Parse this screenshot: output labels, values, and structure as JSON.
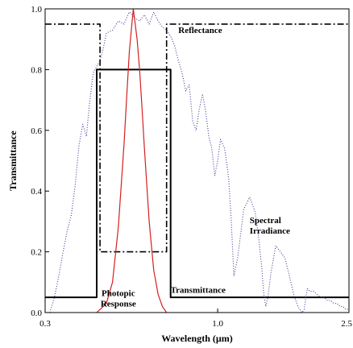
{
  "chart_data": {
    "type": "line",
    "xlabel": "Wavelength (µm)",
    "ylabel": "Transmittance",
    "x_scale": "log",
    "xlim": [
      0.3,
      2.5
    ],
    "ylim": [
      0.0,
      1.0
    ],
    "x_ticks": [
      {
        "value": 0.3,
        "label": "0.3"
      },
      {
        "value": 1.0,
        "label": "1.0"
      },
      {
        "value": 2.5,
        "label": "2.5"
      }
    ],
    "y_ticks": [
      {
        "value": 0.0,
        "label": "0.0"
      },
      {
        "value": 0.2,
        "label": "0.2"
      },
      {
        "value": 0.4,
        "label": "0.4"
      },
      {
        "value": 0.6,
        "label": "0.6"
      },
      {
        "value": 0.8,
        "label": "0.8"
      },
      {
        "value": 1.0,
        "label": "1.0"
      }
    ],
    "grid": false,
    "legend": "none",
    "annotations": [
      {
        "text": "Reflectance",
        "x": 0.76,
        "y": 0.92
      },
      {
        "text": "Spectral",
        "x": 1.25,
        "y": 0.295
      },
      {
        "text": "Irradiance",
        "x": 1.25,
        "y": 0.26
      },
      {
        "text": "Photopic",
        "x": 0.5,
        "y": 0.055
      },
      {
        "text": "Response",
        "x": 0.5,
        "y": 0.02
      },
      {
        "text": "Transmittance",
        "x": 0.72,
        "y": 0.065
      }
    ],
    "series": [
      {
        "style": "solid",
        "color": "#000000",
        "x": [
          0.3,
          0.43,
          0.43,
          0.72,
          0.72,
          2.5
        ],
        "y": [
          0.05,
          0.05,
          0.8,
          0.8,
          0.05,
          0.05
        ]
      },
      {
        "style": "dashdot",
        "color": "#000000",
        "x": [
          0.3,
          0.44,
          0.44,
          0.7,
          0.7,
          2.5
        ],
        "y": [
          0.95,
          0.95,
          0.2,
          0.2,
          0.95,
          0.95
        ]
      },
      {
        "style": "solid",
        "color": "#d42020",
        "x": [
          0.43,
          0.46,
          0.48,
          0.5,
          0.52,
          0.53,
          0.54,
          0.555,
          0.57,
          0.58,
          0.59,
          0.6,
          0.62,
          0.64,
          0.66,
          0.68,
          0.7
        ],
        "y": [
          0.0,
          0.03,
          0.1,
          0.28,
          0.55,
          0.71,
          0.86,
          1.0,
          0.9,
          0.8,
          0.67,
          0.54,
          0.3,
          0.14,
          0.06,
          0.02,
          0.0
        ]
      },
      {
        "style": "dotted",
        "color": "#3a3a9a",
        "x": [
          0.31,
          0.32,
          0.33,
          0.34,
          0.35,
          0.36,
          0.37,
          0.38,
          0.39,
          0.4,
          0.41,
          0.42,
          0.43,
          0.44,
          0.45,
          0.46,
          0.48,
          0.5,
          0.52,
          0.54,
          0.56,
          0.58,
          0.6,
          0.62,
          0.64,
          0.66,
          0.68,
          0.7,
          0.72,
          0.74,
          0.76,
          0.78,
          0.8,
          0.82,
          0.84,
          0.86,
          0.88,
          0.9,
          0.92,
          0.94,
          0.96,
          0.98,
          1.0,
          1.02,
          1.05,
          1.08,
          1.1,
          1.12,
          1.15,
          1.2,
          1.25,
          1.3,
          1.33,
          1.36,
          1.38,
          1.4,
          1.42,
          1.45,
          1.5,
          1.55,
          1.6,
          1.65,
          1.7,
          1.75,
          1.8,
          1.83,
          1.85,
          1.87,
          1.9,
          1.95,
          2.0,
          2.05,
          2.1,
          2.15,
          2.2,
          2.25,
          2.3,
          2.35,
          2.4,
          2.45,
          2.5
        ],
        "y": [
          0.0,
          0.05,
          0.12,
          0.2,
          0.27,
          0.32,
          0.42,
          0.55,
          0.62,
          0.58,
          0.7,
          0.79,
          0.81,
          0.83,
          0.87,
          0.92,
          0.93,
          0.96,
          0.95,
          0.99,
          0.97,
          0.96,
          0.98,
          0.95,
          0.99,
          0.96,
          0.94,
          0.93,
          0.91,
          0.88,
          0.83,
          0.79,
          0.73,
          0.75,
          0.63,
          0.6,
          0.67,
          0.72,
          0.66,
          0.58,
          0.54,
          0.45,
          0.5,
          0.57,
          0.54,
          0.44,
          0.3,
          0.12,
          0.18,
          0.34,
          0.38,
          0.33,
          0.25,
          0.15,
          0.06,
          0.02,
          0.05,
          0.13,
          0.22,
          0.2,
          0.18,
          0.12,
          0.06,
          0.02,
          0.0,
          0.01,
          0.05,
          0.08,
          0.07,
          0.07,
          0.06,
          0.05,
          0.05,
          0.04,
          0.04,
          0.03,
          0.03,
          0.02,
          0.02,
          0.01,
          0.01
        ]
      }
    ]
  }
}
